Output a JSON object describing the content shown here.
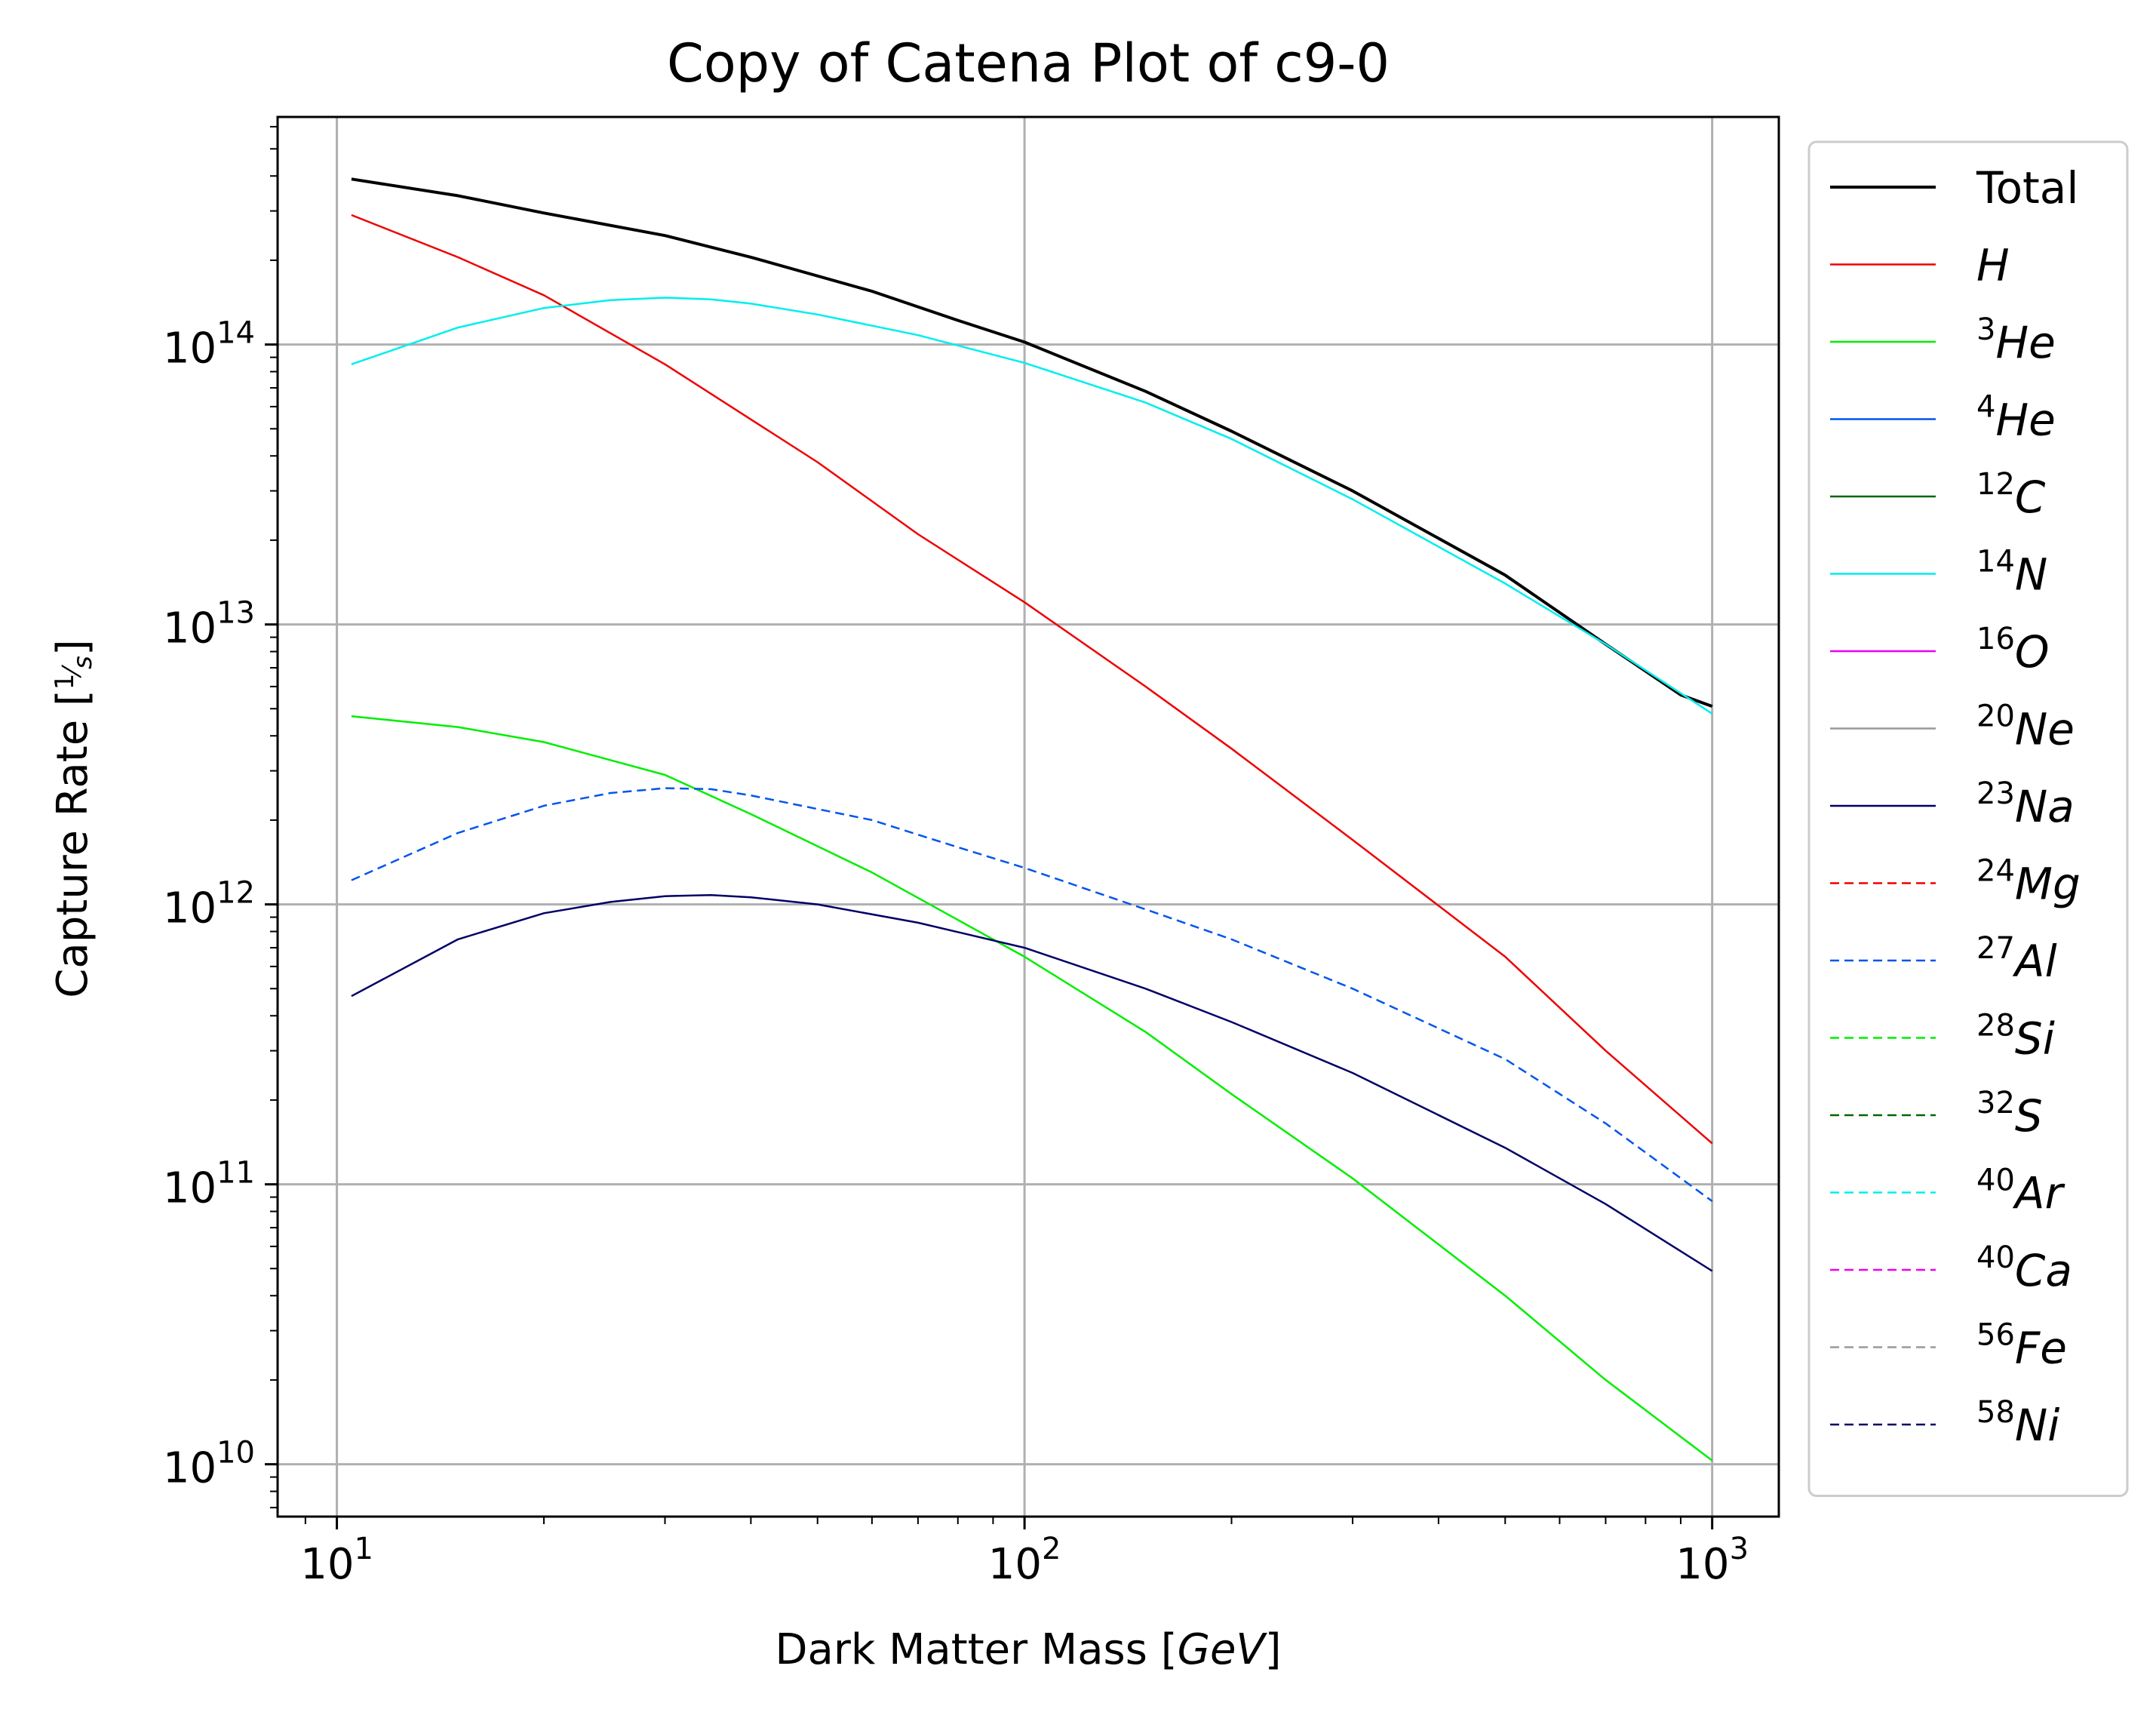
{
  "chart_data": {
    "type": "line",
    "title": "Copy of Catena Plot of c9-0",
    "xlabel": {
      "text": "Dark Matter Mass [",
      "var": "GeV",
      "close": "]"
    },
    "ylabel": {
      "text": "Capture Rate [",
      "num": "1",
      "den": "s",
      "close": "]"
    },
    "x_scale": "log",
    "y_scale": "log",
    "xlim": [
      8.2,
      1250
    ],
    "ylim": [
      6500000000.0,
      650000000000000.0
    ],
    "grid": true,
    "legend_position": "outside-right",
    "x_ticks": [
      {
        "value": 10,
        "base": "10",
        "exp": "1"
      },
      {
        "value": 100,
        "base": "10",
        "exp": "2"
      },
      {
        "value": 1000,
        "base": "10",
        "exp": "3"
      }
    ],
    "y_ticks": [
      {
        "value": 10000000000.0,
        "base": "10",
        "exp": "10"
      },
      {
        "value": 100000000000.0,
        "base": "10",
        "exp": "11"
      },
      {
        "value": 1000000000000.0,
        "base": "10",
        "exp": "12"
      },
      {
        "value": 10000000000000.0,
        "base": "10",
        "exp": "13"
      },
      {
        "value": 100000000000000.0,
        "base": "10",
        "exp": "14"
      }
    ],
    "legend": [
      {
        "sup": "",
        "name": "Total",
        "color": "#000000",
        "dash": "solid",
        "plain": true
      },
      {
        "sup": "",
        "name": "H",
        "color": "#ee0000",
        "dash": "solid"
      },
      {
        "sup": "3",
        "name": "He",
        "color": "#00ee00",
        "dash": "solid"
      },
      {
        "sup": "4",
        "name": "He",
        "color": "#0055ee",
        "dash": "solid"
      },
      {
        "sup": "12",
        "name": "C",
        "color": "#006600",
        "dash": "solid"
      },
      {
        "sup": "14",
        "name": "N",
        "color": "#00eeee",
        "dash": "solid"
      },
      {
        "sup": "16",
        "name": "O",
        "color": "#ee00ee",
        "dash": "solid"
      },
      {
        "sup": "20",
        "name": "Ne",
        "color": "#999999",
        "dash": "solid"
      },
      {
        "sup": "23",
        "name": "Na",
        "color": "#000066",
        "dash": "solid"
      },
      {
        "sup": "24",
        "name": "Mg",
        "color": "#ee0000",
        "dash": "dashed"
      },
      {
        "sup": "27",
        "name": "Al",
        "color": "#0055ee",
        "dash": "dashed"
      },
      {
        "sup": "28",
        "name": "Si",
        "color": "#00ee00",
        "dash": "dashed"
      },
      {
        "sup": "32",
        "name": "S",
        "color": "#006600",
        "dash": "dashed"
      },
      {
        "sup": "40",
        "name": "Ar",
        "color": "#00eeee",
        "dash": "dashed"
      },
      {
        "sup": "40",
        "name": "Ca",
        "color": "#ee00ee",
        "dash": "dashed"
      },
      {
        "sup": "56",
        "name": "Fe",
        "color": "#999999",
        "dash": "dashed"
      },
      {
        "sup": "58",
        "name": "Ni",
        "color": "#000066",
        "dash": "dashed"
      }
    ],
    "series": [
      {
        "name": "Total",
        "color": "#000000",
        "dash": "solid",
        "width": 4,
        "x": [
          10.5,
          15,
          20,
          30,
          40,
          60,
          80,
          100,
          150,
          200,
          300,
          500,
          700,
          900,
          1000
        ],
        "y": [
          390000000000000.0,
          340000000000000.0,
          295000000000000.0,
          245000000000000.0,
          205000000000000.0,
          155000000000000.0,
          122000000000000.0,
          102000000000000.0,
          68000000000000.0,
          49000000000000.0,
          30000000000000.0,
          15000000000000.0,
          8500000000000.0,
          5600000000000.0,
          5100000000000.0
        ]
      },
      {
        "name": "H",
        "color": "#ee0000",
        "dash": "solid",
        "width": 2.5,
        "x": [
          10.5,
          15,
          20,
          30,
          50,
          70,
          100,
          150,
          200,
          300,
          500,
          700,
          1000
        ],
        "y": [
          290000000000000.0,
          205000000000000.0,
          150000000000000.0,
          85000000000000.0,
          38000000000000.0,
          21000000000000.0,
          12000000000000.0,
          6000000000000.0,
          3600000000000.0,
          1700000000000.0,
          650000000000.0,
          300000000000.0,
          140000000000.0
        ]
      },
      {
        "name": "3He",
        "color": "#00ee00",
        "dash": "solid",
        "width": 2.5,
        "x": [
          10.5,
          15,
          20,
          30,
          40,
          60,
          80,
          100,
          150,
          200,
          300,
          500,
          700,
          1000
        ],
        "y": [
          4700000000000.0,
          4300000000000.0,
          3800000000000.0,
          2900000000000.0,
          2100000000000.0,
          1300000000000.0,
          880000000000.0,
          650000000000.0,
          350000000000.0,
          210000000000.0,
          105000000000.0,
          40000000000.0,
          20000000000.0,
          10300000000.0
        ]
      },
      {
        "name": "14N",
        "color": "#00eeee",
        "dash": "solid",
        "width": 2.5,
        "x": [
          10.5,
          15,
          20,
          25,
          30,
          35,
          40,
          50,
          70,
          100,
          150,
          200,
          300,
          500,
          700,
          1000
        ],
        "y": [
          85000000000000.0,
          115000000000000.0,
          135000000000000.0,
          144000000000000.0,
          147000000000000.0,
          145000000000000.0,
          140000000000000.0,
          128000000000000.0,
          108000000000000.0,
          86000000000000.0,
          62000000000000.0,
          46000000000000.0,
          28000000000000.0,
          14000000000000.0,
          8500000000000.0,
          4800000000000.0
        ]
      },
      {
        "name": "23Na",
        "color": "#000066",
        "dash": "solid",
        "width": 2.5,
        "x": [
          10.5,
          15,
          20,
          25,
          30,
          35,
          40,
          50,
          70,
          100,
          150,
          200,
          300,
          500,
          700,
          1000
        ],
        "y": [
          470000000000.0,
          750000000000.0,
          930000000000.0,
          1020000000000.0,
          1070000000000.0,
          1080000000000.0,
          1060000000000.0,
          1000000000000.0,
          860000000000.0,
          700000000000.0,
          500000000000.0,
          380000000000.0,
          250000000000.0,
          135000000000.0,
          85000000000.0,
          49000000000.0
        ]
      },
      {
        "name": "27Al",
        "color": "#0055ee",
        "dash": "dashed",
        "width": 2.5,
        "x": [
          10.5,
          15,
          20,
          25,
          30,
          35,
          40,
          60,
          80,
          100,
          150,
          200,
          300,
          500,
          700,
          1000
        ],
        "y": [
          1220000000000.0,
          1800000000000.0,
          2250000000000.0,
          2500000000000.0,
          2600000000000.0,
          2580000000000.0,
          2450000000000.0,
          2000000000000.0,
          1600000000000.0,
          1350000000000.0,
          960000000000.0,
          750000000000.0,
          500000000000.0,
          280000000000.0,
          165000000000.0,
          87000000000.0
        ]
      }
    ]
  }
}
